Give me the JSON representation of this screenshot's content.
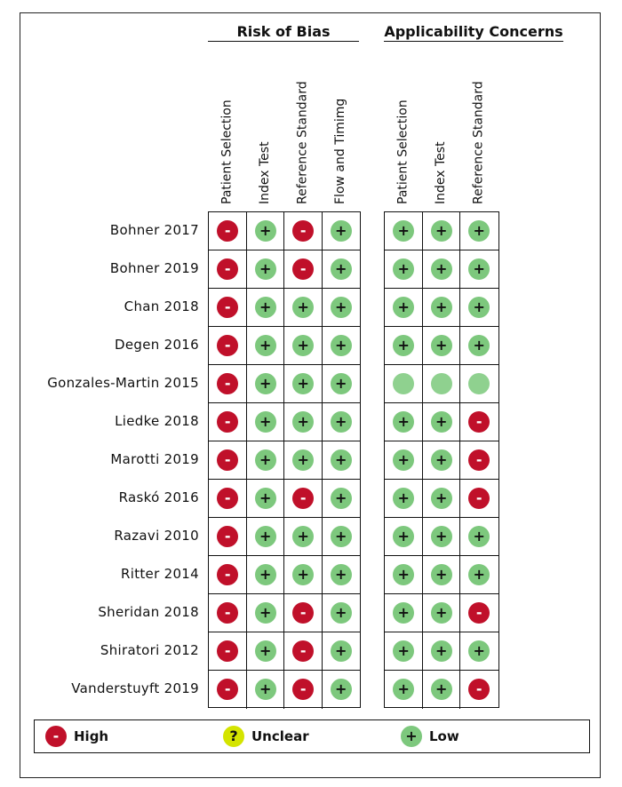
{
  "groups": [
    {
      "title": "Risk of Bias",
      "columns": [
        "Patient Selection",
        "Index Test",
        "Reference Standard",
        "Flow and Timimg"
      ]
    },
    {
      "title": "Applicability Concerns",
      "columns": [
        "Patient Selection",
        "Index Test",
        "Reference Standard"
      ]
    }
  ],
  "studies": [
    {
      "name": "Bohner 2017",
      "risk": [
        "high",
        "low",
        "high",
        "low"
      ],
      "applicability": [
        "low",
        "low",
        "low"
      ]
    },
    {
      "name": "Bohner 2019",
      "risk": [
        "high",
        "low",
        "high",
        "low"
      ],
      "applicability": [
        "low",
        "low",
        "low"
      ]
    },
    {
      "name": "Chan 2018",
      "risk": [
        "high",
        "low",
        "low",
        "low"
      ],
      "applicability": [
        "low",
        "low",
        "low"
      ]
    },
    {
      "name": "Degen 2016",
      "risk": [
        "high",
        "low",
        "low",
        "low"
      ],
      "applicability": [
        "low",
        "low",
        "low"
      ]
    },
    {
      "name": "Gonzales-Martin 2015",
      "risk": [
        "high",
        "low",
        "low",
        "low"
      ],
      "applicability": [
        "blank",
        "blank",
        "blank"
      ]
    },
    {
      "name": "Liedke 2018",
      "risk": [
        "high",
        "low",
        "low",
        "low"
      ],
      "applicability": [
        "low",
        "low",
        "high"
      ]
    },
    {
      "name": "Marotti 2019",
      "risk": [
        "high",
        "low",
        "low",
        "low"
      ],
      "applicability": [
        "low",
        "low",
        "high"
      ]
    },
    {
      "name": "Raskó 2016",
      "risk": [
        "high",
        "low",
        "high",
        "low"
      ],
      "applicability": [
        "low",
        "low",
        "high"
      ]
    },
    {
      "name": "Razavi 2010",
      "risk": [
        "high",
        "low",
        "low",
        "low"
      ],
      "applicability": [
        "low",
        "low",
        "low"
      ]
    },
    {
      "name": "Ritter 2014",
      "risk": [
        "high",
        "low",
        "low",
        "low"
      ],
      "applicability": [
        "low",
        "low",
        "low"
      ]
    },
    {
      "name": "Sheridan 2018",
      "risk": [
        "high",
        "low",
        "high",
        "low"
      ],
      "applicability": [
        "low",
        "low",
        "high"
      ]
    },
    {
      "name": "Shiratori 2012",
      "risk": [
        "high",
        "low",
        "high",
        "low"
      ],
      "applicability": [
        "low",
        "low",
        "low"
      ]
    },
    {
      "name": "Vanderstuyft 2019",
      "risk": [
        "high",
        "low",
        "high",
        "low"
      ],
      "applicability": [
        "low",
        "low",
        "high"
      ]
    }
  ],
  "symbols": {
    "high": "-",
    "low": "+",
    "unclear": "?",
    "blank": ""
  },
  "legend": [
    {
      "key": "high",
      "label": "High"
    },
    {
      "key": "unclear",
      "label": "Unclear"
    },
    {
      "key": "low",
      "label": "Low"
    }
  ],
  "colors": {
    "high": "#c0102a",
    "low": "#7dc87d",
    "unclear": "#d4e400"
  }
}
